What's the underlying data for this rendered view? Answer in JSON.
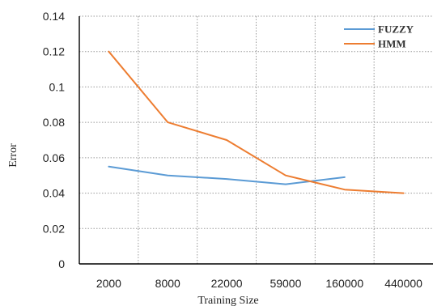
{
  "chart_data": {
    "type": "line",
    "title": "",
    "xlabel": "Training Size",
    "ylabel": "Error",
    "categories": [
      "2000",
      "8000",
      "22000",
      "59000",
      "160000",
      "440000"
    ],
    "y_ticks": [
      "0",
      "0.02",
      "0.04",
      "0.06",
      "0.08",
      "0.1",
      "0.12",
      "0.14"
    ],
    "ylim": [
      0,
      0.14
    ],
    "grid": "dotted",
    "legend_position": "top-right",
    "series": [
      {
        "name": "FUZZY",
        "color": "#5b9bd5",
        "values": [
          0.055,
          0.05,
          0.048,
          0.045,
          0.049,
          null
        ]
      },
      {
        "name": "HMM",
        "color": "#ed7d31",
        "values": [
          0.12,
          0.08,
          0.07,
          0.05,
          0.042,
          0.04
        ]
      }
    ]
  }
}
